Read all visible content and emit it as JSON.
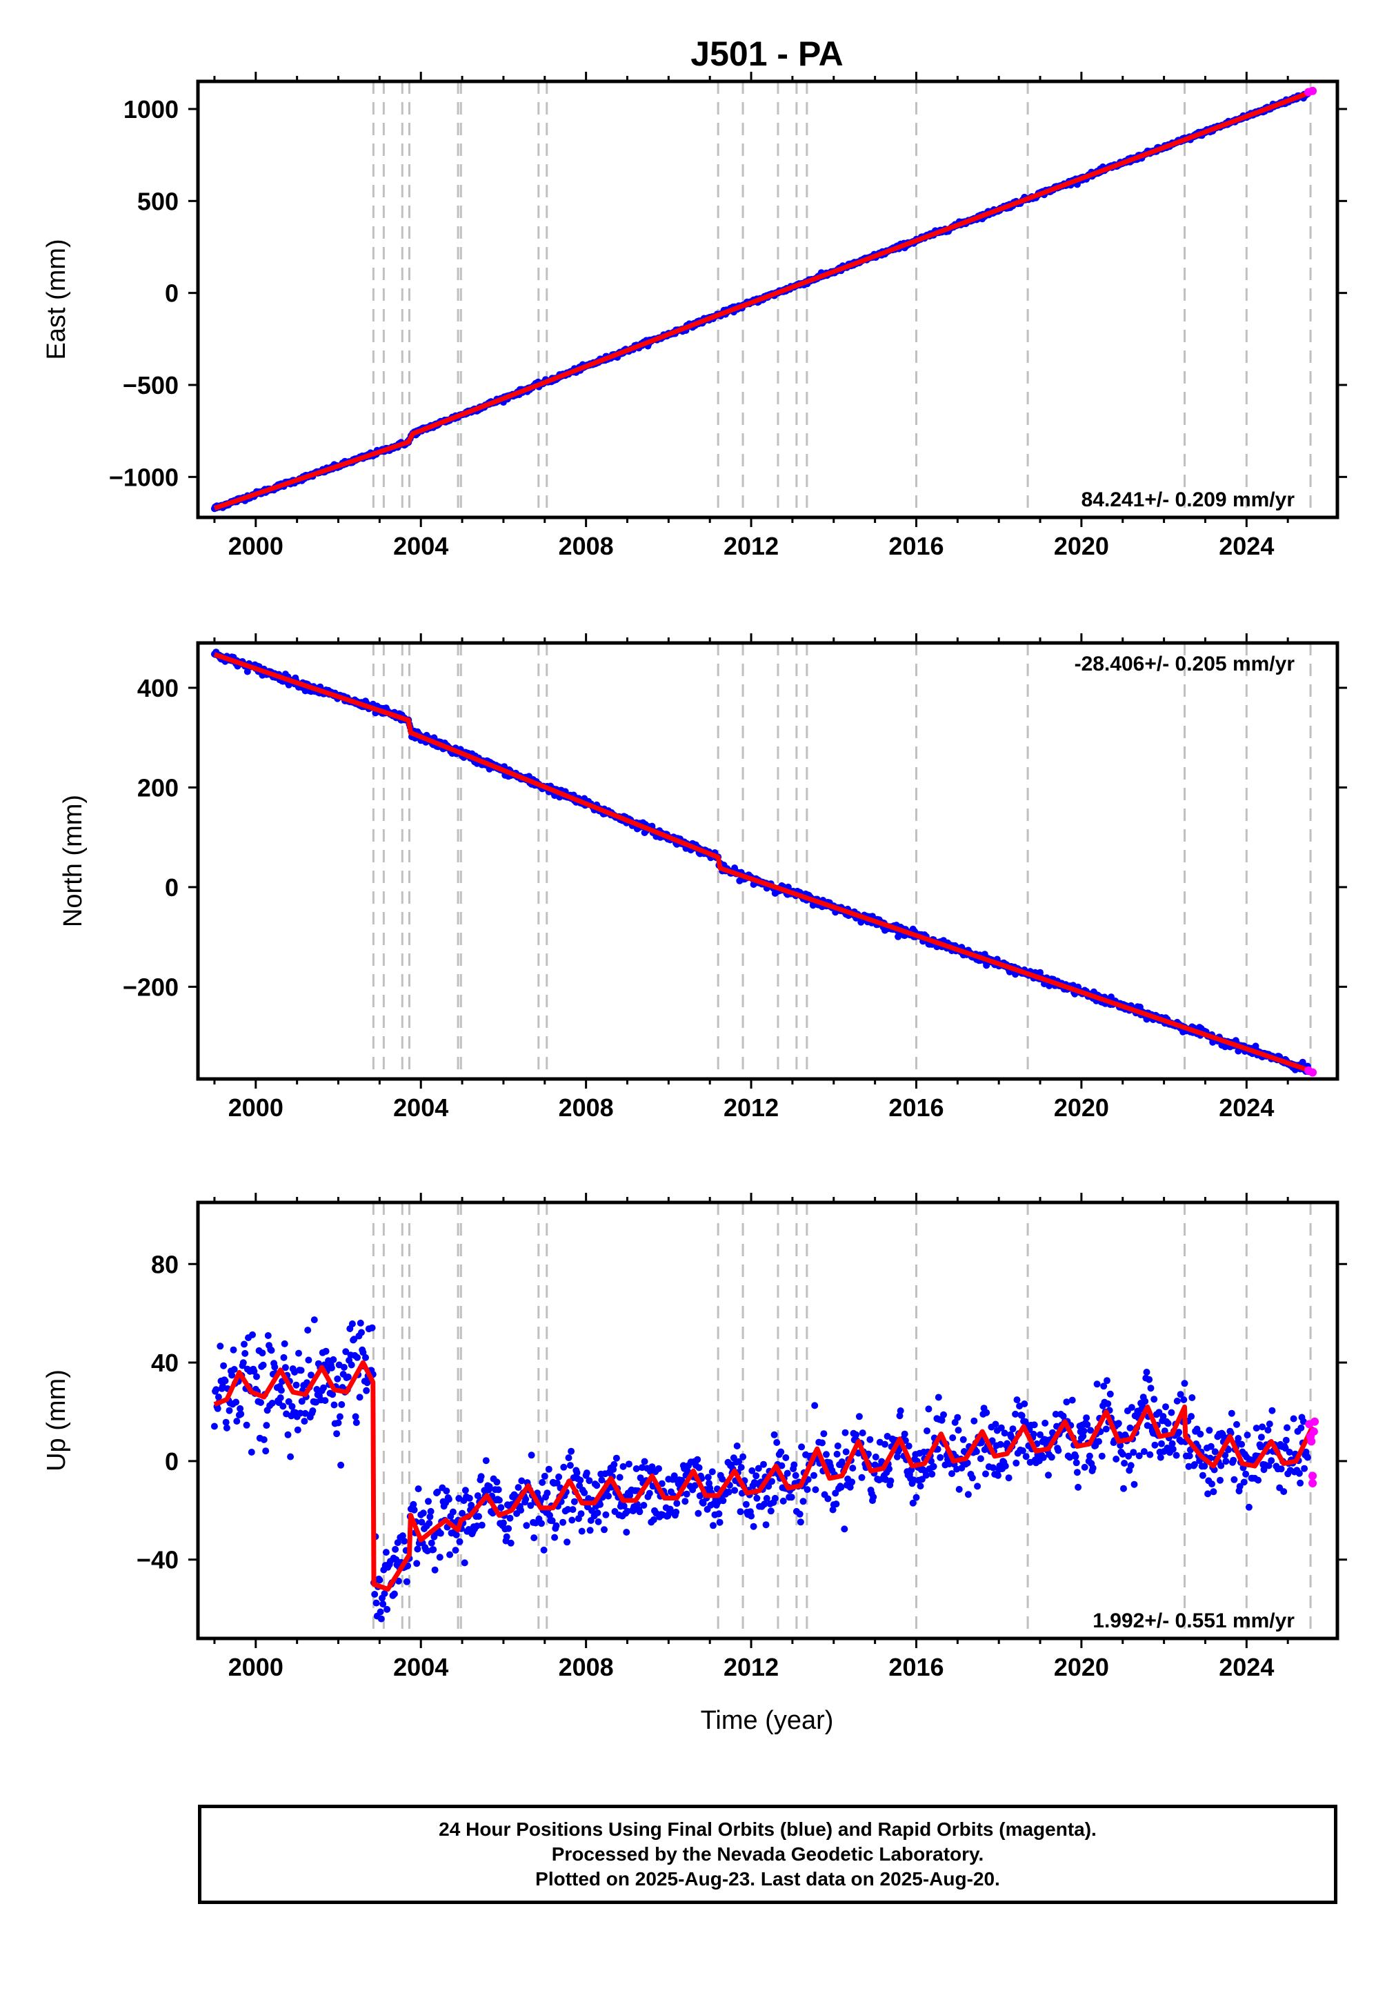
{
  "chart_data": {
    "type": "scatter",
    "title": "J501 - PA",
    "xlabel": "Time (year)",
    "xlim": [
      1998.6,
      2026.2
    ],
    "x_ticks": [
      2000,
      2004,
      2008,
      2012,
      2016,
      2020,
      2024
    ],
    "x_tick_labels": [
      "2000",
      "2004",
      "2008",
      "2012",
      "2016",
      "2020",
      "2024"
    ],
    "event_lines_years": [
      2002.85,
      2003.1,
      2003.55,
      2003.72,
      2004.9,
      2004.97,
      2006.85,
      2007.05,
      2011.2,
      2011.8,
      2012.65,
      2013.1,
      2013.35,
      2016.0,
      2018.7,
      2022.5,
      2024.0,
      2025.55
    ],
    "colors": {
      "final_orbits": "#0000ff",
      "rapid_orbits": "#ff00ff",
      "model": "#ff0000",
      "event_lines": "#c0c0c0"
    },
    "panels": [
      {
        "ylabel": "East (mm)",
        "ylim": [
          -1220,
          1150
        ],
        "y_ticks": [
          -1000,
          -500,
          0,
          500,
          1000
        ],
        "y_tick_labels": [
          "−1000",
          "−500",
          "0",
          "500",
          "1000"
        ],
        "rate_text": "84.241+/- 0.209 mm/yr",
        "rate_position": "bottom-right",
        "show_title": true,
        "show_xlabel": false,
        "model": [
          [
            1999.0,
            -1170
          ],
          [
            2003.7,
            -810
          ],
          [
            2003.8,
            -765
          ],
          [
            2011.2,
            -120
          ],
          [
            2025.6,
            1095
          ]
        ],
        "rapid": [
          [
            2025.5,
            1092
          ],
          [
            2025.6,
            1098
          ]
        ]
      },
      {
        "ylabel": "North (mm)",
        "ylim": [
          -385,
          490
        ],
        "y_ticks": [
          -200,
          0,
          200,
          400
        ],
        "y_tick_labels": [
          "−200",
          "0",
          "200",
          "400"
        ],
        "rate_text": "-28.406+/- 0.205 mm/yr",
        "rate_position": "top-right",
        "show_title": false,
        "show_xlabel": false,
        "model": [
          [
            1999.0,
            467
          ],
          [
            2001.0,
            410
          ],
          [
            2003.7,
            335
          ],
          [
            2003.75,
            310
          ],
          [
            2011.2,
            60
          ],
          [
            2011.25,
            38
          ],
          [
            2025.6,
            -370
          ]
        ],
        "rapid": [
          [
            2025.5,
            -368
          ],
          [
            2025.6,
            -372
          ]
        ]
      },
      {
        "ylabel": "Up (mm)",
        "ylim": [
          -72,
          105
        ],
        "y_ticks": [
          -40,
          0,
          40,
          80
        ],
        "y_tick_labels": [
          "−40",
          "0",
          "40",
          "80"
        ],
        "rate_text": "1.992+/- 0.551 mm/yr",
        "rate_position": "bottom-right",
        "show_title": false,
        "show_xlabel": true,
        "model": [
          [
            1999.0,
            23
          ],
          [
            1999.3,
            25
          ],
          [
            1999.6,
            36
          ],
          [
            1999.9,
            28
          ],
          [
            2000.2,
            26
          ],
          [
            2000.6,
            37
          ],
          [
            2000.9,
            28
          ],
          [
            2001.2,
            27
          ],
          [
            2001.6,
            38
          ],
          [
            2001.9,
            29
          ],
          [
            2002.2,
            28
          ],
          [
            2002.6,
            40
          ],
          [
            2002.84,
            32
          ],
          [
            2002.86,
            -50
          ],
          [
            2003.2,
            -52
          ],
          [
            2003.5,
            -44
          ],
          [
            2003.72,
            -38
          ],
          [
            2003.75,
            -22
          ],
          [
            2004.0,
            -32
          ],
          [
            2004.3,
            -28
          ],
          [
            2004.6,
            -24
          ],
          [
            2004.9,
            -28
          ],
          [
            2004.97,
            -24
          ],
          [
            2005.2,
            -22
          ],
          [
            2005.6,
            -14
          ],
          [
            2005.9,
            -22
          ],
          [
            2006.2,
            -20
          ],
          [
            2006.6,
            -10
          ],
          [
            2006.9,
            -19
          ],
          [
            2007.2,
            -19
          ],
          [
            2007.6,
            -8
          ],
          [
            2007.9,
            -17
          ],
          [
            2008.2,
            -17
          ],
          [
            2008.6,
            -7
          ],
          [
            2008.9,
            -16
          ],
          [
            2009.2,
            -16
          ],
          [
            2009.6,
            -6
          ],
          [
            2009.9,
            -15
          ],
          [
            2010.2,
            -15
          ],
          [
            2010.6,
            -4
          ],
          [
            2010.9,
            -14
          ],
          [
            2011.2,
            -14
          ],
          [
            2011.6,
            -4
          ],
          [
            2011.9,
            -13
          ],
          [
            2012.2,
            -12
          ],
          [
            2012.6,
            -2
          ],
          [
            2012.9,
            -11
          ],
          [
            2013.2,
            -10
          ],
          [
            2013.6,
            5
          ],
          [
            2013.9,
            -7
          ],
          [
            2014.2,
            -6
          ],
          [
            2014.6,
            8
          ],
          [
            2014.9,
            -4
          ],
          [
            2015.2,
            -3
          ],
          [
            2015.6,
            9
          ],
          [
            2015.9,
            -2
          ],
          [
            2016.2,
            -1
          ],
          [
            2016.6,
            11
          ],
          [
            2016.9,
            0
          ],
          [
            2017.2,
            1
          ],
          [
            2017.6,
            12
          ],
          [
            2017.9,
            2
          ],
          [
            2018.2,
            3
          ],
          [
            2018.6,
            14
          ],
          [
            2018.9,
            4
          ],
          [
            2019.2,
            5
          ],
          [
            2019.6,
            16
          ],
          [
            2019.9,
            6
          ],
          [
            2020.2,
            7
          ],
          [
            2020.6,
            20
          ],
          [
            2020.9,
            8
          ],
          [
            2021.2,
            9
          ],
          [
            2021.6,
            22
          ],
          [
            2021.9,
            10
          ],
          [
            2022.2,
            11
          ],
          [
            2022.5,
            22
          ],
          [
            2022.52,
            10
          ],
          [
            2022.9,
            2
          ],
          [
            2023.2,
            -2
          ],
          [
            2023.6,
            10
          ],
          [
            2023.9,
            -1
          ],
          [
            2024.2,
            -2
          ],
          [
            2024.6,
            8
          ],
          [
            2024.9,
            -1
          ],
          [
            2025.2,
            0
          ],
          [
            2025.6,
            14
          ]
        ],
        "rapid": [
          [
            2025.52,
            15
          ],
          [
            2025.55,
            10
          ],
          [
            2025.57,
            8
          ],
          [
            2025.6,
            -6
          ],
          [
            2025.6,
            -9
          ],
          [
            2025.63,
            12
          ],
          [
            2025.65,
            16
          ]
        ]
      }
    ]
  },
  "footer": {
    "line1": "24 Hour Positions Using Final Orbits (blue) and Rapid Orbits (magenta).",
    "line2": "Processed by the Nevada Geodetic Laboratory.",
    "line3": "Plotted on 2025-Aug-23. Last data on 2025-Aug-20."
  }
}
